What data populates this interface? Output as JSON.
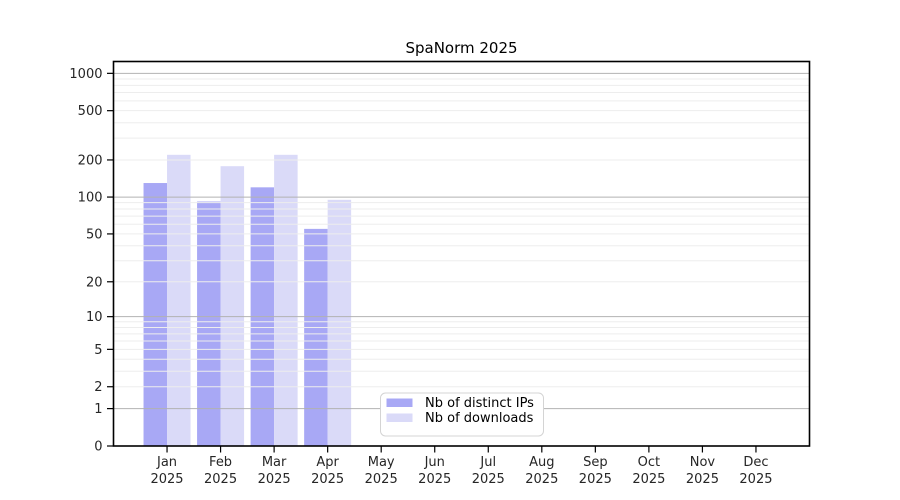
{
  "chart_data": {
    "type": "bar",
    "title": "SpaNorm 2025",
    "scale": "log10(1+y)",
    "year_label": "2025",
    "categories": [
      "Jan",
      "Feb",
      "Mar",
      "Apr",
      "May",
      "Jun",
      "Jul",
      "Aug",
      "Sep",
      "Oct",
      "Nov",
      "Dec"
    ],
    "series": [
      {
        "name": "Nb of distinct IPs",
        "color": "#a8a8f5",
        "values": [
          130,
          92,
          120,
          55,
          null,
          null,
          null,
          null,
          null,
          null,
          null,
          null
        ]
      },
      {
        "name": "Nb of downloads",
        "color": "#dadaf8",
        "values": [
          220,
          178,
          220,
          95,
          null,
          null,
          null,
          null,
          null,
          null,
          null,
          null
        ]
      }
    ],
    "yticks": [
      0,
      1,
      2,
      5,
      10,
      20,
      50,
      100,
      200,
      500,
      1000
    ],
    "ylim": [
      0,
      1260
    ],
    "xlabel": "",
    "ylabel": "",
    "grid": {
      "major_gridline_color": "#b2b2b2",
      "minor_gridline_color": "#ededed",
      "axis_color": "#000000",
      "tick_label_color": "#262626",
      "grid_on": true,
      "gridlines_above_bars": true
    },
    "legend": {
      "position": "lower-center-inside",
      "background": "#ffffff",
      "border_color": "#d4d4d4"
    }
  }
}
